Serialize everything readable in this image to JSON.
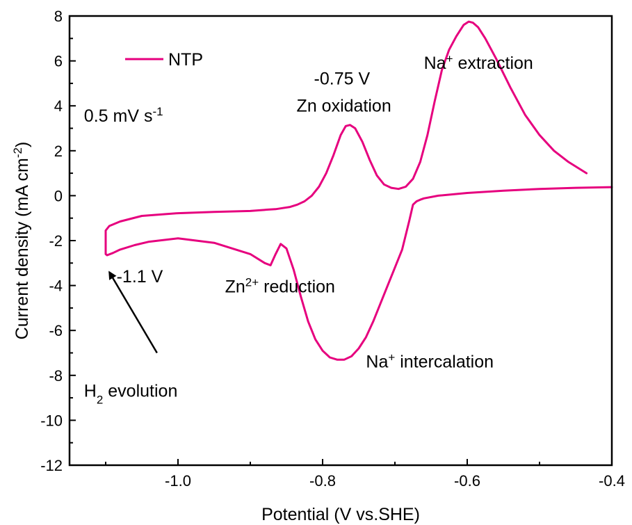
{
  "chart_data": {
    "type": "line",
    "title": "",
    "xlabel": "Potential (V vs.SHE)",
    "ylabel_parts": {
      "main": "Current density (mA cm",
      "sup": "-2",
      "close": ")"
    },
    "xlim": [
      -1.15,
      -0.4
    ],
    "ylim": [
      -12,
      8
    ],
    "x_ticks": [
      -1.0,
      -0.8,
      -0.6,
      -0.4
    ],
    "x_tick_labels": [
      "-1.0",
      "-0.8",
      "-0.6",
      "-0.4"
    ],
    "y_ticks": [
      -12,
      -10,
      -8,
      -6,
      -4,
      -2,
      0,
      2,
      4,
      6,
      8
    ],
    "y_tick_labels": [
      "-12",
      "-10",
      "-8",
      "-6",
      "-4",
      "-2",
      "0",
      "2",
      "4",
      "6",
      "8"
    ],
    "grid": false,
    "legend": {
      "position": "top-left"
    },
    "series": [
      {
        "name": "NTP",
        "color": "#e6007e",
        "x": [
          -0.435,
          -0.46,
          -0.48,
          -0.5,
          -0.52,
          -0.54,
          -0.56,
          -0.575,
          -0.585,
          -0.592,
          -0.598,
          -0.605,
          -0.615,
          -0.625,
          -0.635,
          -0.645,
          -0.655,
          -0.665,
          -0.675,
          -0.685,
          -0.695,
          -0.705,
          -0.715,
          -0.725,
          -0.735,
          -0.745,
          -0.755,
          -0.762,
          -0.768,
          -0.775,
          -0.785,
          -0.795,
          -0.805,
          -0.815,
          -0.825,
          -0.835,
          -0.845,
          -0.855,
          -0.865,
          -0.875,
          -0.9,
          -0.95,
          -1.0,
          -1.05,
          -1.08,
          -1.095,
          -1.1,
          -1.1,
          -1.098,
          -1.09,
          -1.08,
          -1.06,
          -1.04,
          -1.0,
          -0.95,
          -0.9,
          -0.88,
          -0.872,
          -0.865,
          -0.858,
          -0.85,
          -0.84,
          -0.83,
          -0.82,
          -0.81,
          -0.8,
          -0.79,
          -0.78,
          -0.77,
          -0.76,
          -0.75,
          -0.74,
          -0.73,
          -0.72,
          -0.71,
          -0.7,
          -0.69,
          -0.68,
          -0.675,
          -0.67,
          -0.665,
          -0.66,
          -0.64,
          -0.6,
          -0.55,
          -0.5,
          -0.45,
          -0.4
        ],
        "y": [
          1.0,
          1.5,
          2.0,
          2.7,
          3.6,
          4.8,
          6.1,
          7.0,
          7.5,
          7.7,
          7.75,
          7.6,
          7.1,
          6.5,
          5.6,
          4.2,
          2.7,
          1.5,
          0.75,
          0.4,
          0.3,
          0.35,
          0.5,
          0.9,
          1.6,
          2.4,
          3.0,
          3.15,
          3.1,
          2.7,
          1.8,
          1.0,
          0.4,
          0.0,
          -0.25,
          -0.4,
          -0.5,
          -0.55,
          -0.6,
          -0.62,
          -0.68,
          -0.72,
          -0.78,
          -0.9,
          -1.15,
          -1.35,
          -1.55,
          -2.6,
          -2.65,
          -2.55,
          -2.4,
          -2.2,
          -2.05,
          -1.9,
          -2.1,
          -2.6,
          -3.0,
          -3.1,
          -2.6,
          -2.15,
          -2.35,
          -3.3,
          -4.5,
          -5.6,
          -6.4,
          -6.9,
          -7.2,
          -7.3,
          -7.3,
          -7.15,
          -6.8,
          -6.3,
          -5.6,
          -4.8,
          -4.0,
          -3.2,
          -2.4,
          -1.1,
          -0.4,
          -0.25,
          -0.18,
          -0.12,
          0.0,
          0.12,
          0.22,
          0.3,
          0.35,
          0.38
        ]
      }
    ],
    "annotations": [
      {
        "id": "scan-rate",
        "x": -1.13,
        "y": 3.3,
        "parts": [
          {
            "t": "0.5 mV s"
          },
          {
            "t": "-1",
            "sup": true
          }
        ]
      },
      {
        "id": "zn-ox-potential",
        "x": -0.812,
        "y": 4.95,
        "parts": [
          {
            "t": "-0.75 V"
          }
        ]
      },
      {
        "id": "zn-oxidation",
        "x": -0.836,
        "y": 3.75,
        "parts": [
          {
            "t": "Zn oxidation"
          }
        ]
      },
      {
        "id": "na-extraction",
        "x": -0.66,
        "y": 5.65,
        "parts": [
          {
            "t": "Na"
          },
          {
            "t": "+",
            "sup": true
          },
          {
            "t": " extraction"
          }
        ]
      },
      {
        "id": "h2-potential",
        "x": -1.085,
        "y": -3.85,
        "parts": [
          {
            "t": "-1.1 V"
          }
        ]
      },
      {
        "id": "zn2-reduction",
        "x": -0.935,
        "y": -4.3,
        "parts": [
          {
            "t": "Zn"
          },
          {
            "t": "2+",
            "sup": true
          },
          {
            "t": " reduction"
          }
        ]
      },
      {
        "id": "na-intercalation",
        "x": -0.74,
        "y": -7.65,
        "parts": [
          {
            "t": "Na"
          },
          {
            "t": "+",
            "sup": true
          },
          {
            "t": " intercalation"
          }
        ]
      },
      {
        "id": "h2-evolution",
        "x": -1.13,
        "y": -8.95,
        "parts": [
          {
            "t": "H"
          },
          {
            "t": "2",
            "sub": true
          },
          {
            "t": " evolution"
          }
        ]
      }
    ],
    "arrow": {
      "from": {
        "x": -1.029,
        "y": -7.0
      },
      "to": {
        "x": -1.095,
        "y": -3.4
      }
    }
  }
}
